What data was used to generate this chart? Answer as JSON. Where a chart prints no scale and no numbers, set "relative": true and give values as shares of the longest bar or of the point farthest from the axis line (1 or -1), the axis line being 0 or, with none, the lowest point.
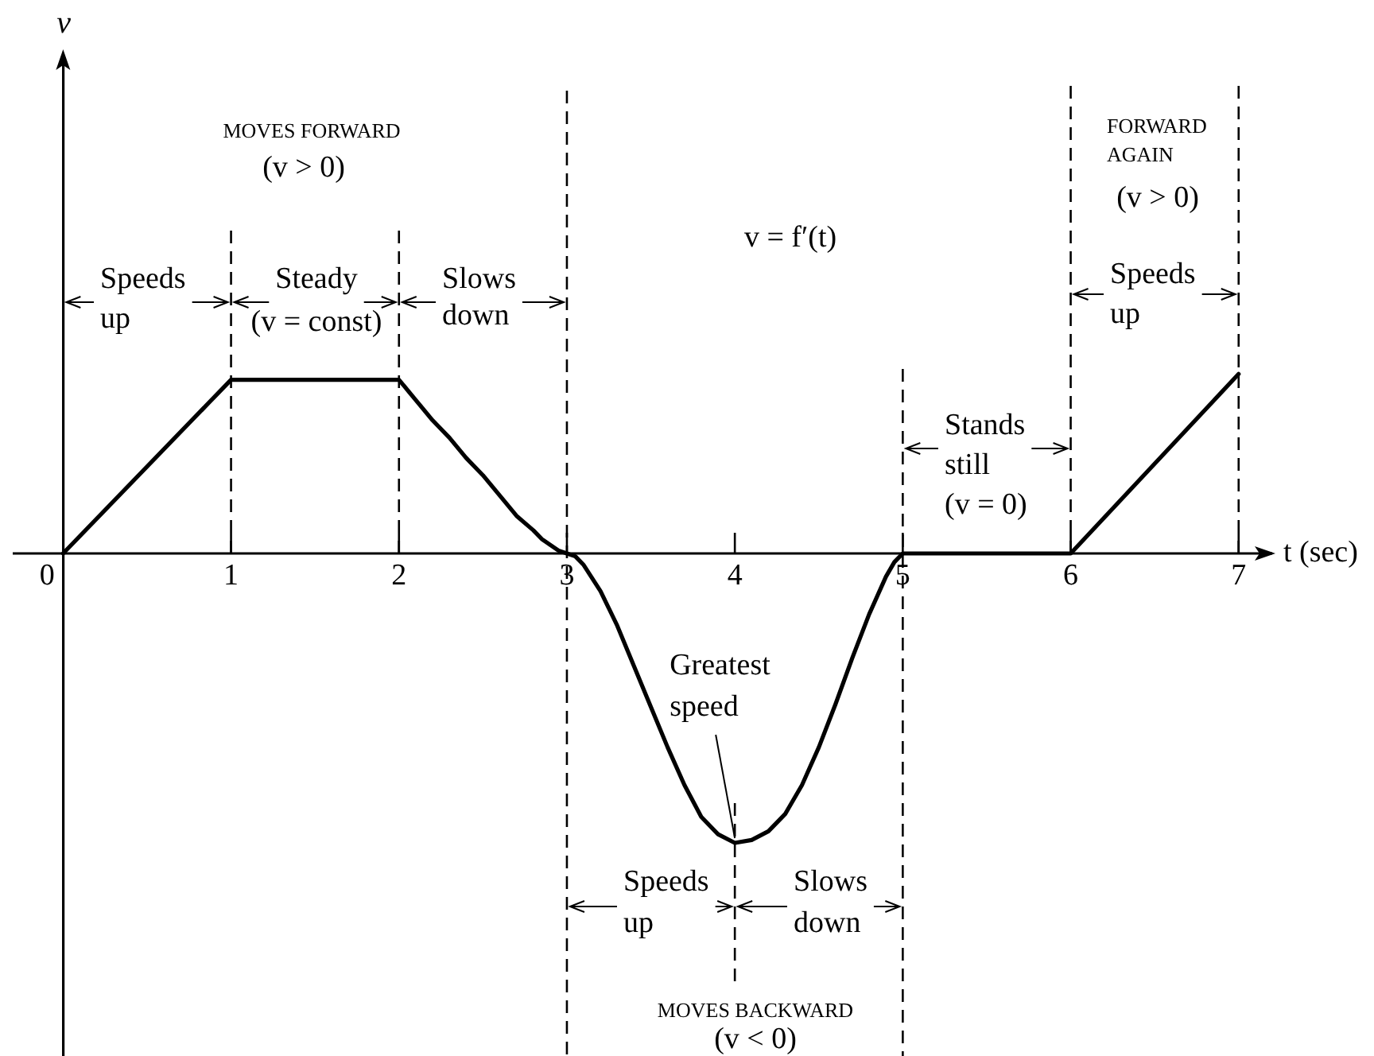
{
  "chart_data": {
    "type": "line",
    "relative": true,
    "xlabel": "t (sec)",
    "xlim": [
      -0.3,
      7.2
    ],
    "xticks": [
      0,
      1,
      2,
      3,
      4,
      5,
      6,
      7
    ],
    "x": [
      0,
      1,
      2,
      2.1,
      2.2,
      2.3,
      2.4,
      2.5,
      2.6,
      2.7,
      2.8,
      2.85,
      2.9,
      2.95,
      3,
      3.05,
      3.1,
      3.2,
      3.3,
      3.4,
      3.5,
      3.6,
      3.7,
      3.8,
      3.9,
      4,
      4.1,
      4.2,
      4.3,
      4.4,
      4.5,
      4.6,
      4.7,
      4.8,
      4.9,
      4.95,
      5,
      6,
      7
    ],
    "series": [
      {
        "color": "#000000",
        "values": [
          0,
          0.6,
          0.6,
          0.53,
          0.46,
          0.4,
          0.33,
          0.27,
          0.2,
          0.13,
          0.08,
          0.05,
          0.03,
          0.01,
          0,
          -0.01,
          -0.04,
          -0.13,
          -0.25,
          -0.39,
          -0.53,
          -0.67,
          -0.8,
          -0.91,
          -0.97,
          -1,
          -0.99,
          -0.96,
          -0.9,
          -0.8,
          -0.67,
          -0.52,
          -0.36,
          -0.21,
          -0.08,
          -0.03,
          0,
          0,
          0.62
        ]
      }
    ],
    "ref_lines": [
      {
        "axis": "x",
        "value": 1,
        "line_style": "dashed"
      },
      {
        "axis": "x",
        "value": 2,
        "line_style": "dashed"
      },
      {
        "axis": "x",
        "value": 3,
        "line_style": "dashed"
      },
      {
        "axis": "x",
        "value": 4,
        "line_style": "dashed"
      },
      {
        "axis": "x",
        "value": 5,
        "line_style": "dashed"
      },
      {
        "axis": "x",
        "value": 6,
        "line_style": "dashed"
      },
      {
        "axis": "x",
        "value": 7,
        "line_style": "dashed"
      }
    ],
    "annotations": [
      "v",
      "MOVES FORWARD",
      "(v > 0)",
      "Speeds\nup",
      "Steady\n(v = const)",
      "Slows\ndown",
      "v = f′(t)",
      "FORWARD\nAGAIN",
      "(v > 0)",
      "Speeds\nup",
      "Stands\nstill\n(v = 0)",
      {
        "text": "Greatest\nspeed",
        "x": 4,
        "y": -1
      },
      "Speeds\nup",
      "Slows\ndown",
      "MOVES BACKWARD",
      "(v < 0)"
    ]
  }
}
